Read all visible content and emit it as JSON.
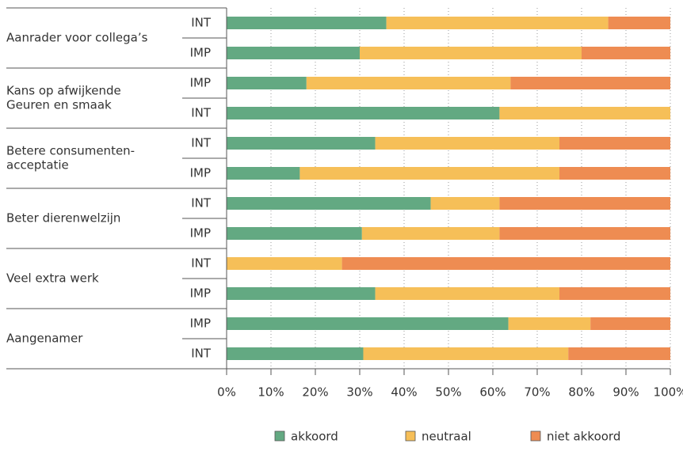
{
  "chart_data": {
    "type": "stacked_bar_horizontal",
    "groups": [
      [
        "Aanrader voor collega’s"
      ],
      [
        "Kans op afwijkende",
        "Geuren en smaak"
      ],
      [
        "Betere consumenten-",
        "acceptatie"
      ],
      [
        "Beter dierenwelzijn"
      ],
      [
        "Veel extra werk"
      ],
      [
        "Aangenamer"
      ]
    ],
    "categories": [
      "INT",
      "IMP",
      "IMP",
      "INT",
      "INT",
      "IMP",
      "INT",
      "IMP",
      "INT",
      "IMP",
      "IMP",
      "INT"
    ],
    "series": [
      {
        "name": "akkoord",
        "color": "#63a982",
        "values": [
          36,
          30,
          18,
          61.5,
          33.5,
          16.5,
          46,
          30.5,
          0,
          33.5,
          63.5,
          30.8
        ]
      },
      {
        "name": "neutraal",
        "color": "#f6bf58",
        "values": [
          50,
          50,
          46,
          38.5,
          41.5,
          58.5,
          15.5,
          31,
          26,
          41.5,
          18.5,
          46.2
        ]
      },
      {
        "name": "niet akkoord",
        "color": "#ee8c52",
        "values": [
          14,
          20,
          36,
          0,
          25,
          25,
          38.5,
          38.5,
          74,
          25,
          18,
          23
        ]
      }
    ],
    "xlim": [
      0,
      100
    ],
    "xticks": [
      {
        "value": 0,
        "label": "0%"
      },
      {
        "value": 10,
        "label": "10%"
      },
      {
        "value": 20,
        "label": "20%"
      },
      {
        "value": 30,
        "label": "30%"
      },
      {
        "value": 40,
        "label": "40%"
      },
      {
        "value": 50,
        "label": "50%"
      },
      {
        "value": 60,
        "label": "60%"
      },
      {
        "value": 70,
        "label": "70%"
      },
      {
        "value": 80,
        "label": "80%"
      },
      {
        "value": 90,
        "label": "90%"
      },
      {
        "value": 100,
        "label": "100%"
      }
    ],
    "grid": true
  }
}
